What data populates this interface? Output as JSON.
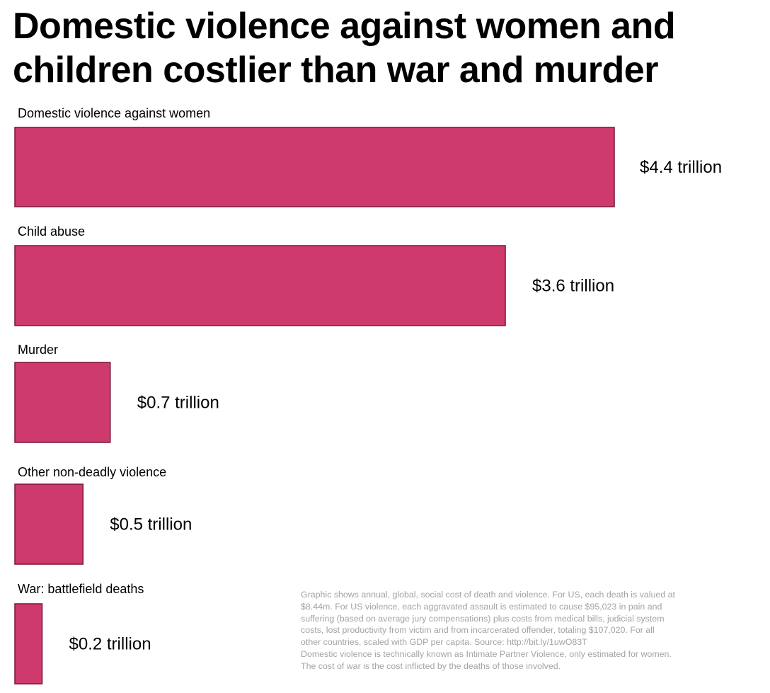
{
  "title_line1": "Domestic violence against women and",
  "title_line2": "children costlier than war and murder",
  "chart_data": {
    "type": "bar",
    "orientation": "horizontal",
    "categories": [
      "Domestic violence against women",
      "Child abuse",
      "Murder",
      "Other non-deadly violence",
      "War: battlefield deaths"
    ],
    "values": [
      4.4,
      3.6,
      0.7,
      0.5,
      0.2
    ],
    "value_labels": [
      "$4.4 trillion",
      "$3.6 trillion",
      "$0.7 trillion",
      "$0.5 trillion",
      "$0.2 trillion"
    ],
    "unit": "trillion USD",
    "title": "Domestic violence against women and children costlier than war and murder",
    "xlabel": "",
    "ylabel": "",
    "grid": false,
    "legend": "none",
    "colors": {
      "bar": "#cf3a6e",
      "bar_border": "#7a1436"
    }
  },
  "footnote": {
    "lines": [
      "Graphic shows annual, global, social cost of death and violence. For US, each death is valued at",
      "$8.44m. For US violence, each aggravated assault is estimated to cause $95,023 in pain and",
      "suffering (based on average jury compensations) plus costs from medical bills, judicial system",
      "costs, lost productivity from victim and from incarcerated offender, totaling $107,020. For all",
      "other countries, scaled with GDP per capita. Source: http://bit.ly/1uwO83T",
      "Domestic violence is technically known as Intimate Partner Violence, only estimated for women.",
      "The cost of war is the cost inflicted by the deaths of those involved."
    ]
  }
}
